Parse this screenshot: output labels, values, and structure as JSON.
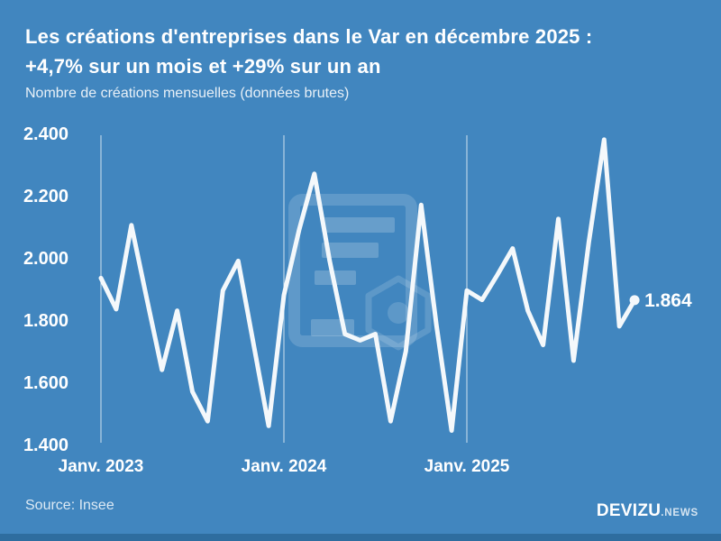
{
  "header": {
    "title_line1": "Les créations d'entreprises dans le Var en décembre 2025 :",
    "title_line2": "+4,7% sur un mois et +29% sur un an",
    "subtitle": "Nombre de créations mensuelles (données brutes)"
  },
  "chart_data": {
    "type": "line",
    "title": "Les créations d'entreprises dans le Var en décembre 2025 : +4,7% sur un mois et +29% sur un an",
    "ylabel": "Nombre de créations mensuelles (données brutes)",
    "x": [
      "2023-01",
      "2023-02",
      "2023-03",
      "2023-04",
      "2023-05",
      "2023-06",
      "2023-07",
      "2023-08",
      "2023-09",
      "2023-10",
      "2023-11",
      "2023-12",
      "2024-01",
      "2024-02",
      "2024-03",
      "2024-04",
      "2024-05",
      "2024-06",
      "2024-07",
      "2024-08",
      "2024-09",
      "2024-10",
      "2024-11",
      "2024-12",
      "2025-01",
      "2025-02",
      "2025-03",
      "2025-04",
      "2025-05",
      "2025-06",
      "2025-07",
      "2025-08",
      "2025-09",
      "2025-10",
      "2025-11",
      "2025-12"
    ],
    "values": [
      1935,
      1835,
      2105,
      1870,
      1640,
      1830,
      1570,
      1475,
      1895,
      1990,
      1725,
      1460,
      1880,
      2090,
      2270,
      1990,
      1755,
      1735,
      1755,
      1475,
      1700,
      2170,
      1785,
      1445,
      1895,
      1865,
      1945,
      2030,
      1830,
      1720,
      2125,
      1670,
      2050,
      2380,
      1780,
      1864
    ],
    "ylim": [
      1400,
      2400
    ],
    "grid": "vertical-lines-at-january",
    "legend": "none",
    "y_ticks": [
      {
        "value": 2400,
        "label": "2.400"
      },
      {
        "value": 2200,
        "label": "2.200"
      },
      {
        "value": 2000,
        "label": "2.000"
      },
      {
        "value": 1800,
        "label": "1.800"
      },
      {
        "value": 1600,
        "label": "1.600"
      },
      {
        "value": 1400,
        "label": "1.400"
      }
    ],
    "x_ticks": [
      {
        "index": 0,
        "label": "Janv. 2023"
      },
      {
        "index": 12,
        "label": "Janv. 2024"
      },
      {
        "index": 24,
        "label": "Janv. 2025"
      }
    ],
    "end_point_label": "1.864"
  },
  "footer": {
    "source": "Source: Insee",
    "brand": "DEVIZU",
    "brand_suffix": ".NEWS"
  },
  "icons": {
    "watermark": "devizu-document-nut-logo"
  },
  "colors": {
    "background": "#4186bf",
    "line": "#f4f8fb",
    "gridline": "rgba(255,255,255,0.75)",
    "footer_strip": "#2e6d9f",
    "watermark": "#ffffff"
  }
}
